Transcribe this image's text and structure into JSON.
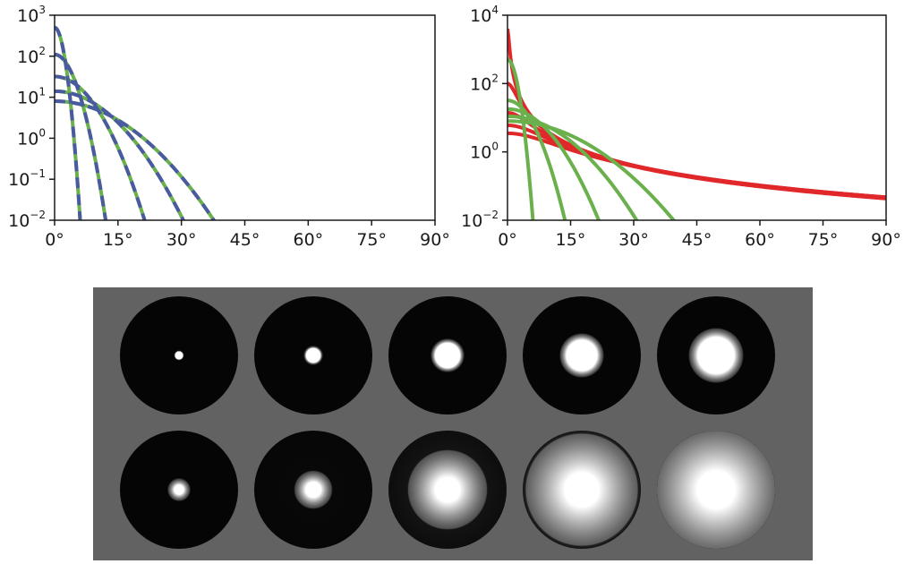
{
  "chart_data": [
    {
      "type": "line",
      "scale": {
        "x": "linear",
        "y": "log"
      },
      "xlim": [
        0,
        90
      ],
      "ylim": [
        0.01,
        1000
      ],
      "x_ticks": [
        0,
        15,
        30,
        45,
        60,
        75,
        90
      ],
      "x_tick_labels": [
        "0°",
        "15°",
        "30°",
        "45°",
        "60°",
        "75°",
        "90°"
      ],
      "y_ticks": [
        0.01,
        0.1,
        1,
        10,
        100,
        1000
      ],
      "y_tick_labels": [
        {
          "base": "10",
          "exp": "−2"
        },
        {
          "base": "10",
          "exp": "−1"
        },
        {
          "base": "10",
          "exp": "0"
        },
        {
          "base": "10",
          "exp": "1"
        },
        {
          "base": "10",
          "exp": "2"
        },
        {
          "base": "10",
          "exp": "3"
        }
      ],
      "grid": false,
      "series": [
        {
          "color": "#6ab04c",
          "style": "solid",
          "peak": 500,
          "width_deg": 1.3
        },
        {
          "color": "#6ab04c",
          "style": "solid",
          "peak": 110,
          "width_deg": 2.8
        },
        {
          "color": "#6ab04c",
          "style": "solid",
          "peak": 32,
          "width_deg": 5.3
        },
        {
          "color": "#6ab04c",
          "style": "solid",
          "peak": 14,
          "width_deg": 8.0
        },
        {
          "color": "#6ab04c",
          "style": "solid",
          "peak": 8,
          "width_deg": 10.3
        },
        {
          "color": "#4a5aa0",
          "style": "dashed",
          "peak": 500,
          "width_deg": 1.3
        },
        {
          "color": "#4a5aa0",
          "style": "dashed",
          "peak": 110,
          "width_deg": 2.8
        },
        {
          "color": "#4a5aa0",
          "style": "dashed",
          "peak": 32,
          "width_deg": 5.3
        },
        {
          "color": "#4a5aa0",
          "style": "dashed",
          "peak": 14,
          "width_deg": 8.0
        },
        {
          "color": "#4a5aa0",
          "style": "dashed",
          "peak": 8,
          "width_deg": 10.3
        }
      ]
    },
    {
      "type": "line",
      "scale": {
        "x": "linear",
        "y": "log"
      },
      "xlim": [
        0,
        90
      ],
      "ylim": [
        0.01,
        10000
      ],
      "x_ticks": [
        0,
        15,
        30,
        45,
        60,
        75,
        90
      ],
      "x_tick_labels": [
        "0°",
        "15°",
        "30°",
        "45°",
        "60°",
        "75°",
        "90°"
      ],
      "y_ticks": [
        0.01,
        1,
        100,
        10000
      ],
      "y_tick_labels": [
        {
          "base": "10",
          "exp": "−2"
        },
        {
          "base": "10",
          "exp": "0"
        },
        {
          "base": "10",
          "exp": "2"
        },
        {
          "base": "10",
          "exp": "4"
        }
      ],
      "grid": false,
      "series": [
        {
          "color": "#e0282a",
          "style": "solid",
          "model": "cauchy",
          "peak": 4000,
          "gamma_deg": 0.3
        },
        {
          "color": "#e0282a",
          "style": "solid",
          "model": "cauchy",
          "peak": 100,
          "gamma_deg": 1.9
        },
        {
          "color": "#e0282a",
          "style": "solid",
          "model": "cauchy",
          "peak": 14,
          "gamma_deg": 5.0
        },
        {
          "color": "#e0282a",
          "style": "solid",
          "model": "cauchy",
          "peak": 6,
          "gamma_deg": 8.0
        },
        {
          "color": "#e0282a",
          "style": "solid",
          "model": "cauchy",
          "peak": 3.5,
          "gamma_deg": 10.5
        },
        {
          "color": "#6ab04c",
          "style": "solid",
          "model": "gauss",
          "peak": 500,
          "width_deg": 1.3
        },
        {
          "color": "#6ab04c",
          "style": "solid",
          "model": "gauss",
          "peak": 32,
          "width_deg": 3.4
        },
        {
          "color": "#6ab04c",
          "style": "solid",
          "model": "gauss",
          "peak": 18,
          "width_deg": 5.6
        },
        {
          "color": "#6ab04c",
          "style": "solid",
          "model": "gauss",
          "peak": 11,
          "width_deg": 8.2
        },
        {
          "color": "#6ab04c",
          "style": "solid",
          "model": "gauss",
          "peak": 8,
          "width_deg": 10.8
        }
      ]
    }
  ],
  "image_panel": {
    "background": "#626262",
    "disc_color": "#050505",
    "rows": [
      {
        "spots": [
          {
            "core": 0.07,
            "halo": 0.0
          },
          {
            "core": 0.12,
            "halo": 0.03
          },
          {
            "core": 0.21,
            "halo": 0.06
          },
          {
            "core": 0.26,
            "halo": 0.1
          },
          {
            "core": 0.31,
            "halo": 0.14
          }
        ]
      },
      {
        "spots": [
          {
            "core": 0.08,
            "halo": 0.1,
            "glow": 0.0
          },
          {
            "core": 0.13,
            "halo": 0.18,
            "glow": 0.06
          },
          {
            "core": 0.21,
            "halo": 0.45,
            "glow": 0.3
          },
          {
            "core": 0.29,
            "halo": 0.65,
            "glow": 0.55
          },
          {
            "core": 0.32,
            "halo": 0.85,
            "glow": 0.75
          }
        ]
      }
    ]
  }
}
